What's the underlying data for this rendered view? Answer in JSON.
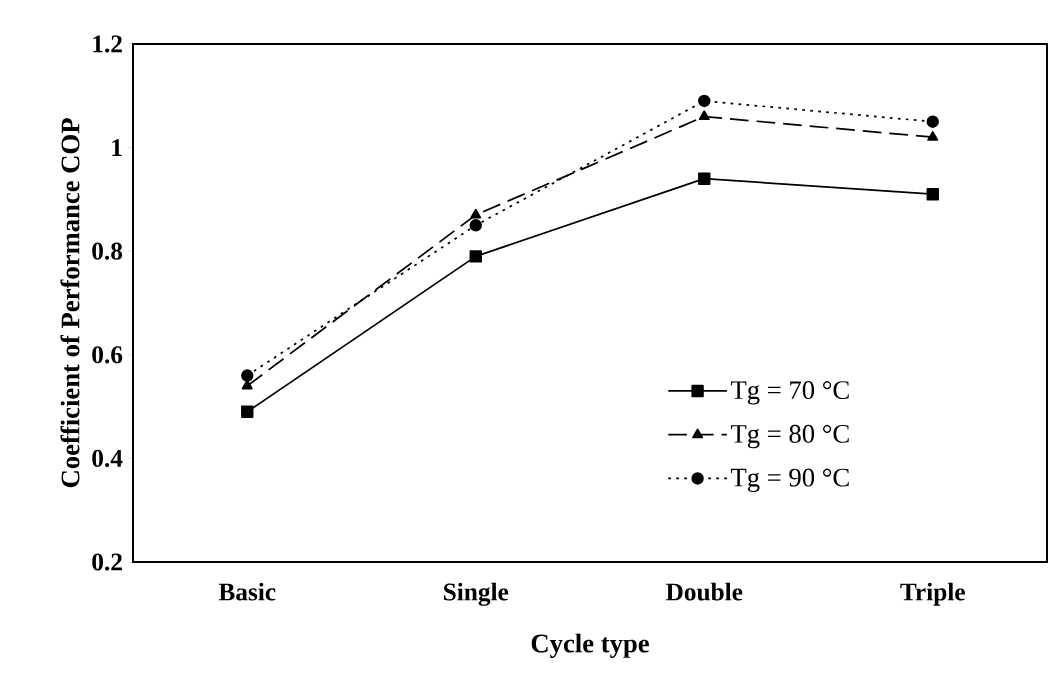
{
  "chart_data": {
    "type": "line",
    "xlabel": "Cycle type",
    "ylabel": "Coefficient of Performance COP",
    "categories": [
      "Basic",
      "Single",
      "Double",
      "Triple"
    ],
    "series": [
      {
        "name": "Tg = 70 °C",
        "color": "#000000",
        "marker": "square",
        "line_style": "solid",
        "values": [
          0.49,
          0.79,
          0.94,
          0.91
        ]
      },
      {
        "name": "Tg = 80 °C",
        "color": "#000000",
        "marker": "triangle",
        "line_style": "dashed",
        "values": [
          0.54,
          0.87,
          1.06,
          1.02
        ]
      },
      {
        "name": "Tg = 90 °C",
        "color": "#000000",
        "marker": "circle",
        "line_style": "dotted",
        "values": [
          0.56,
          0.85,
          1.09,
          1.05
        ]
      }
    ],
    "ylim": [
      0.2,
      1.2
    ],
    "yticks": [
      0.2,
      0.4,
      0.6,
      0.8,
      1,
      1.2
    ],
    "grid": false,
    "legend": "bottom right"
  }
}
